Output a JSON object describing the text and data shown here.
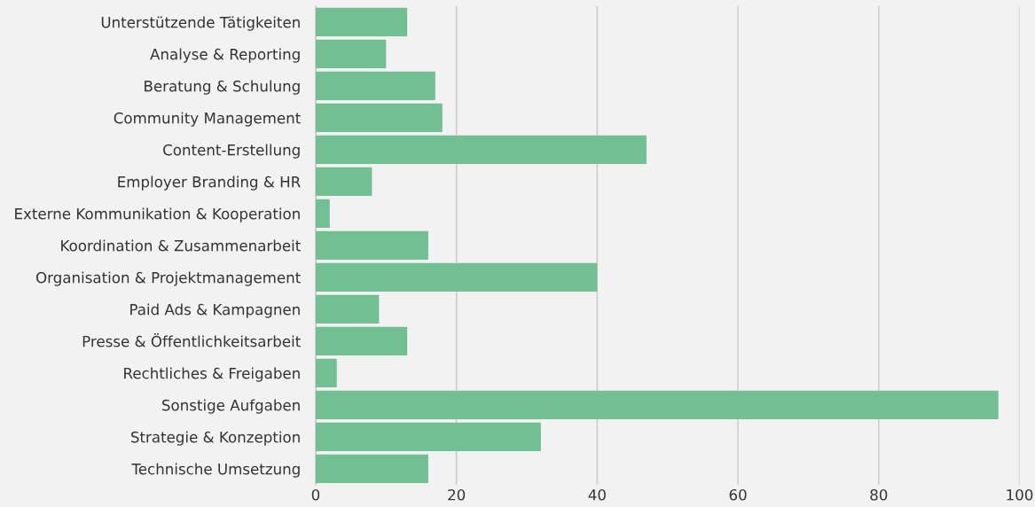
{
  "chart_data": {
    "type": "bar",
    "orientation": "horizontal",
    "categories": [
      "Unterstützende Tätigkeiten",
      "Analyse & Reporting",
      "Beratung & Schulung",
      "Community Management",
      "Content-Erstellung",
      "Employer Branding & HR",
      "Externe Kommunikation & Kooperation",
      "Koordination & Zusammenarbeit",
      "Organisation & Projektmanagement",
      "Paid Ads & Kampagnen",
      "Presse & Öffentlichkeitsarbeit",
      "Rechtliches & Freigaben",
      "Sonstige Aufgaben",
      "Strategie & Konzeption",
      "Technische Umsetzung"
    ],
    "values": [
      13,
      10,
      17,
      18,
      47,
      8,
      2,
      16,
      40,
      9,
      13,
      3,
      97,
      32,
      16
    ],
    "color": "#73bf94",
    "xlim": [
      0,
      100
    ],
    "xticks": [
      0,
      20,
      40,
      60,
      80,
      100
    ],
    "grid": "x"
  }
}
